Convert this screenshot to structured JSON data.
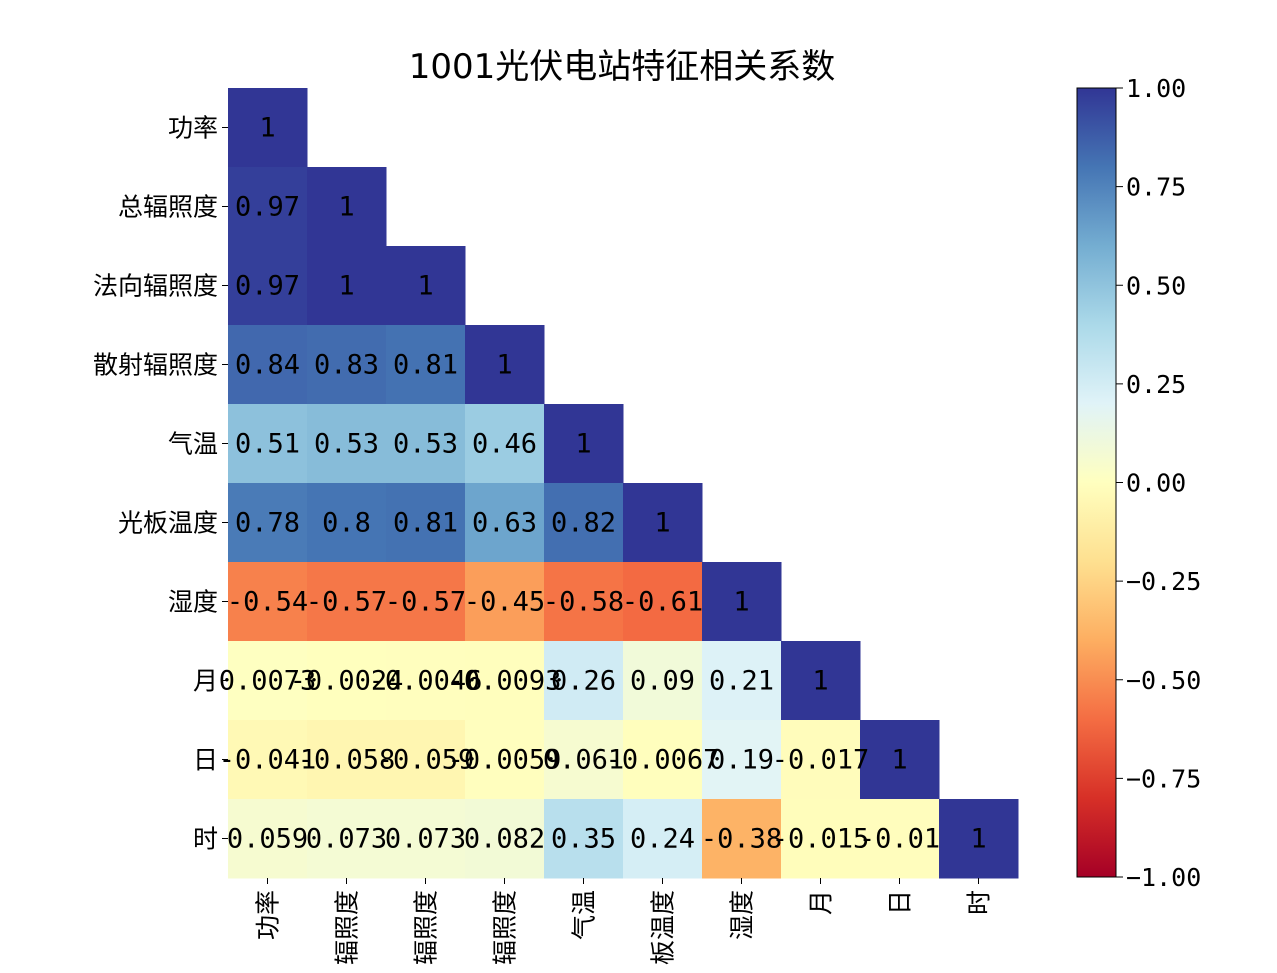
{
  "chart_data": {
    "type": "heatmap",
    "title": "1001光伏电站特征相关系数",
    "row_labels": [
      "功率",
      "总辐照度",
      "法向辐照度",
      "散射辐照度",
      "气温",
      "光板温度",
      "湿度",
      "月",
      "日",
      "时"
    ],
    "col_labels": [
      "功率",
      "辐照度",
      "辐照度",
      "辐照度",
      "气温",
      "板温度",
      "湿度",
      "月",
      "日",
      "时"
    ],
    "mask": "upper-triangle",
    "values": [
      [
        1
      ],
      [
        0.97,
        1
      ],
      [
        0.97,
        1,
        1
      ],
      [
        0.84,
        0.83,
        0.81,
        1
      ],
      [
        0.51,
        0.53,
        0.53,
        0.46,
        1
      ],
      [
        0.78,
        0.8,
        0.81,
        0.63,
        0.82,
        1
      ],
      [
        -0.54,
        -0.57,
        -0.57,
        -0.45,
        -0.58,
        -0.61,
        1
      ],
      [
        0.0073,
        -0.0024,
        -0.0046,
        -0.0093,
        0.26,
        0.09,
        0.21,
        1
      ],
      [
        -0.041,
        -0.058,
        -0.059,
        -0.0059,
        0.061,
        -0.0067,
        0.19,
        -0.017,
        1
      ],
      [
        0.059,
        0.073,
        0.073,
        0.082,
        0.35,
        0.24,
        -0.38,
        -0.015,
        -0.01,
        1
      ]
    ],
    "labels": [
      [
        "1"
      ],
      [
        "0.97",
        "1"
      ],
      [
        "0.97",
        "1",
        "1"
      ],
      [
        "0.84",
        "0.83",
        "0.81",
        "1"
      ],
      [
        "0.51",
        "0.53",
        "0.53",
        "0.46",
        "1"
      ],
      [
        "0.78",
        "0.8",
        "0.81",
        "0.63",
        "0.82",
        "1"
      ],
      [
        "-0.54",
        "-0.57",
        "-0.57",
        "-0.45",
        "-0.58",
        "-0.61",
        "1"
      ],
      [
        "0.0073",
        "-0.0024",
        "-0.0046",
        "-0.0093",
        "0.26",
        "0.09",
        "0.21",
        "1"
      ],
      [
        "-0.041",
        "-0.058",
        "-0.059",
        "-0.0059",
        "0.061",
        "-0.0067",
        "0.19",
        "-0.017",
        "1"
      ],
      [
        "0.059",
        "0.073",
        "0.073",
        "0.082",
        "0.35",
        "0.24",
        "-0.38",
        "-0.015",
        "-0.01",
        "1"
      ]
    ],
    "colormap": "RdYlBu",
    "vmin": -1.0,
    "vmax": 1.0,
    "colorbar": {
      "ticks": [
        1.0,
        0.75,
        0.5,
        0.25,
        0.0,
        -0.25,
        -0.5,
        -0.75,
        -1.0
      ],
      "tick_labels": [
        "1.00",
        "0.75",
        "0.50",
        "0.25",
        "0.00",
        "−0.25",
        "−0.50",
        "−0.75",
        "−1.00"
      ]
    }
  }
}
